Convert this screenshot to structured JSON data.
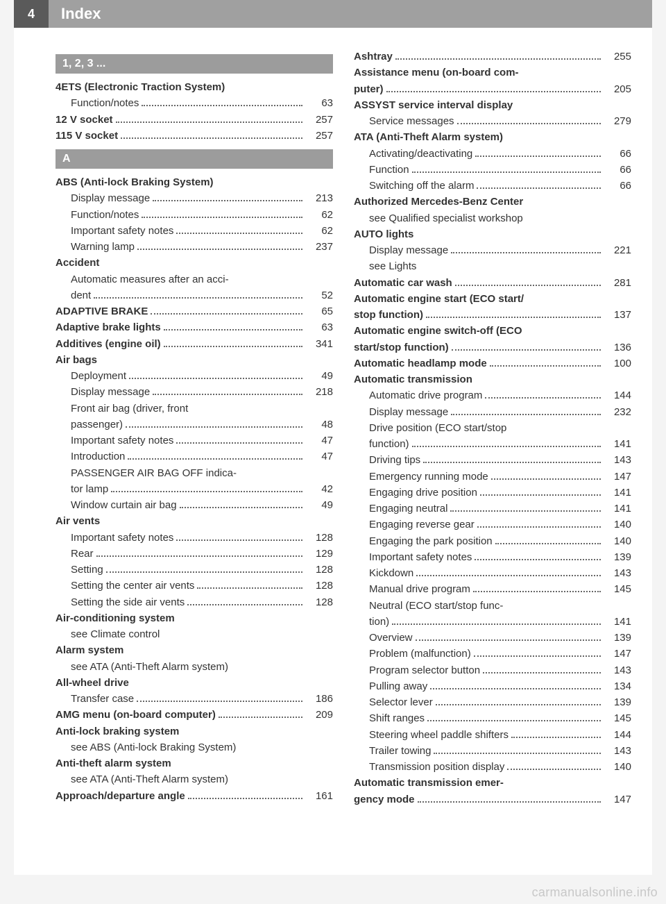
{
  "header": {
    "page_number": "4",
    "title": "Index"
  },
  "watermark": "carmanualsonline.info",
  "sections": {
    "s123": "1, 2, 3 ...",
    "A": "A"
  },
  "colors": {
    "header_bg": "#a0a0a0",
    "page_num_bg": "#5a5a5a",
    "section_bg": "#9c9c9c",
    "text": "#333333",
    "dots": "#666666",
    "watermark": "#c8c8c8",
    "page_bg": "#ffffff",
    "body_bg": "#f4f4f4"
  },
  "typography": {
    "base_fontsize": 15,
    "header_fontsize": 22,
    "section_fontsize": 16
  },
  "left": [
    {
      "section": "s123"
    },
    {
      "t": "4ETS (Electronic Traction System)",
      "b": true,
      "lvl": 0
    },
    {
      "t": "Function/notes",
      "p": "63",
      "lvl": 1
    },
    {
      "t": "12 V socket",
      "b": true,
      "p": "257",
      "lvl": 0
    },
    {
      "t": "115 V socket",
      "b": true,
      "p": "257",
      "lvl": 0
    },
    {
      "section": "A"
    },
    {
      "t": "ABS (Anti-lock Braking System)",
      "b": true,
      "lvl": 0
    },
    {
      "t": "Display message",
      "p": "213",
      "lvl": 1
    },
    {
      "t": "Function/notes",
      "p": "62",
      "lvl": 1
    },
    {
      "t": "Important safety notes",
      "p": "62",
      "lvl": 1
    },
    {
      "t": "Warning lamp",
      "p": "237",
      "lvl": 1
    },
    {
      "t": "Accident",
      "b": true,
      "lvl": 0
    },
    {
      "t": "Automatic measures after an acci-",
      "lvl": 1,
      "nopage": true
    },
    {
      "t": "dent",
      "p": "52",
      "lvl": 1
    },
    {
      "t": "ADAPTIVE BRAKE",
      "b": true,
      "p": "65",
      "lvl": 0
    },
    {
      "t": "Adaptive brake lights",
      "b": true,
      "p": "63",
      "lvl": 0
    },
    {
      "t": "Additives (engine oil)",
      "b": true,
      "p": "341",
      "lvl": 0
    },
    {
      "t": "Air bags",
      "b": true,
      "lvl": 0
    },
    {
      "t": "Deployment",
      "p": "49",
      "lvl": 1
    },
    {
      "t": "Display message",
      "p": "218",
      "lvl": 1
    },
    {
      "t": "Front air bag (driver, front",
      "lvl": 1,
      "nopage": true
    },
    {
      "t": "passenger)",
      "p": "48",
      "lvl": 1
    },
    {
      "t": "Important safety notes",
      "p": "47",
      "lvl": 1
    },
    {
      "t": "Introduction",
      "p": "47",
      "lvl": 1
    },
    {
      "t": "PASSENGER AIR BAG OFF indica-",
      "lvl": 1,
      "nopage": true
    },
    {
      "t": "tor lamp",
      "p": "42",
      "lvl": 1
    },
    {
      "t": "Window curtain air bag",
      "p": "49",
      "lvl": 1
    },
    {
      "t": "Air vents",
      "b": true,
      "lvl": 0
    },
    {
      "t": "Important safety notes",
      "p": "128",
      "lvl": 1
    },
    {
      "t": "Rear",
      "p": "129",
      "lvl": 1
    },
    {
      "t": "Setting",
      "p": "128",
      "lvl": 1
    },
    {
      "t": "Setting the center air vents",
      "p": "128",
      "lvl": 1
    },
    {
      "t": "Setting the side air vents",
      "p": "128",
      "lvl": 1
    },
    {
      "t": "Air-conditioning system",
      "b": true,
      "lvl": 0
    },
    {
      "t": "see Climate control",
      "lvl": 1,
      "nopage": true
    },
    {
      "t": "Alarm system",
      "b": true,
      "lvl": 0
    },
    {
      "t": "see ATA (Anti-Theft Alarm system)",
      "lvl": 1,
      "nopage": true
    },
    {
      "t": "All-wheel drive",
      "b": true,
      "lvl": 0
    },
    {
      "t": "Transfer case",
      "p": "186",
      "lvl": 1
    },
    {
      "t": "AMG menu (on-board computer)",
      "b": true,
      "p": "209",
      "lvl": 0
    },
    {
      "t": "Anti-lock braking system",
      "b": true,
      "lvl": 0
    },
    {
      "t": "see ABS (Anti-lock Braking System)",
      "lvl": 1,
      "nopage": true
    },
    {
      "t": "Anti-theft alarm system",
      "b": true,
      "lvl": 0
    },
    {
      "t": "see ATA (Anti-Theft Alarm system)",
      "lvl": 1,
      "nopage": true
    },
    {
      "t": "Approach/departure angle",
      "b": true,
      "p": "161",
      "lvl": 0
    }
  ],
  "right": [
    {
      "t": "Ashtray",
      "b": true,
      "p": "255",
      "lvl": 0
    },
    {
      "t": "Assistance menu (on-board com-",
      "b": true,
      "lvl": 0,
      "nopage": true
    },
    {
      "t": "puter)",
      "b": true,
      "p": "205",
      "lvl": 0
    },
    {
      "t": "ASSYST service interval display",
      "b": true,
      "lvl": 0
    },
    {
      "t": "Service messages",
      "p": "279",
      "lvl": 1
    },
    {
      "t": "ATA (Anti-Theft Alarm system)",
      "b": true,
      "lvl": 0
    },
    {
      "t": "Activating/deactivating",
      "p": "66",
      "lvl": 1
    },
    {
      "t": "Function",
      "p": "66",
      "lvl": 1
    },
    {
      "t": "Switching off the alarm",
      "p": "66",
      "lvl": 1
    },
    {
      "t": "Authorized Mercedes-Benz Center",
      "b": true,
      "lvl": 0
    },
    {
      "t": "see Qualified specialist workshop",
      "lvl": 1,
      "nopage": true
    },
    {
      "t": "AUTO lights",
      "b": true,
      "lvl": 0
    },
    {
      "t": "Display message",
      "p": "221",
      "lvl": 1
    },
    {
      "t": "see Lights",
      "lvl": 1,
      "nopage": true
    },
    {
      "t": "Automatic car wash",
      "b": true,
      "p": "281",
      "lvl": 0
    },
    {
      "t": "Automatic engine start (ECO start/",
      "b": true,
      "lvl": 0,
      "nopage": true
    },
    {
      "t": "stop function)",
      "b": true,
      "p": "137",
      "lvl": 0
    },
    {
      "t": "Automatic engine switch-off (ECO",
      "b": true,
      "lvl": 0,
      "nopage": true
    },
    {
      "t": "start/stop function)",
      "b": true,
      "p": "136",
      "lvl": 0
    },
    {
      "t": "Automatic headlamp mode",
      "b": true,
      "p": "100",
      "lvl": 0
    },
    {
      "t": "Automatic transmission",
      "b": true,
      "lvl": 0
    },
    {
      "t": "Automatic drive program",
      "p": "144",
      "lvl": 1
    },
    {
      "t": "Display message",
      "p": "232",
      "lvl": 1
    },
    {
      "t": "Drive position (ECO start/stop",
      "lvl": 1,
      "nopage": true
    },
    {
      "t": "function)",
      "p": "141",
      "lvl": 1
    },
    {
      "t": "Driving tips",
      "p": "143",
      "lvl": 1
    },
    {
      "t": "Emergency running mode",
      "p": "147",
      "lvl": 1
    },
    {
      "t": "Engaging drive position",
      "p": "141",
      "lvl": 1
    },
    {
      "t": "Engaging neutral",
      "p": "141",
      "lvl": 1
    },
    {
      "t": "Engaging reverse gear",
      "p": "140",
      "lvl": 1
    },
    {
      "t": "Engaging the park position",
      "p": "140",
      "lvl": 1
    },
    {
      "t": "Important safety notes",
      "p": "139",
      "lvl": 1
    },
    {
      "t": "Kickdown",
      "p": "143",
      "lvl": 1
    },
    {
      "t": "Manual drive program",
      "p": "145",
      "lvl": 1
    },
    {
      "t": "Neutral (ECO start/stop func-",
      "lvl": 1,
      "nopage": true
    },
    {
      "t": "tion)",
      "p": "141",
      "lvl": 1
    },
    {
      "t": "Overview",
      "p": "139",
      "lvl": 1
    },
    {
      "t": "Problem (malfunction)",
      "p": "147",
      "lvl": 1
    },
    {
      "t": "Program selector button",
      "p": "143",
      "lvl": 1
    },
    {
      "t": "Pulling away",
      "p": "134",
      "lvl": 1
    },
    {
      "t": "Selector lever",
      "p": "139",
      "lvl": 1
    },
    {
      "t": "Shift ranges",
      "p": "145",
      "lvl": 1
    },
    {
      "t": "Steering wheel paddle shifters",
      "p": "144",
      "lvl": 1
    },
    {
      "t": "Trailer towing",
      "p": "143",
      "lvl": 1
    },
    {
      "t": "Transmission position display",
      "p": "140",
      "lvl": 1
    },
    {
      "t": "Automatic transmission emer-",
      "b": true,
      "lvl": 0,
      "nopage": true
    },
    {
      "t": "gency mode",
      "b": true,
      "p": "147",
      "lvl": 0
    }
  ]
}
